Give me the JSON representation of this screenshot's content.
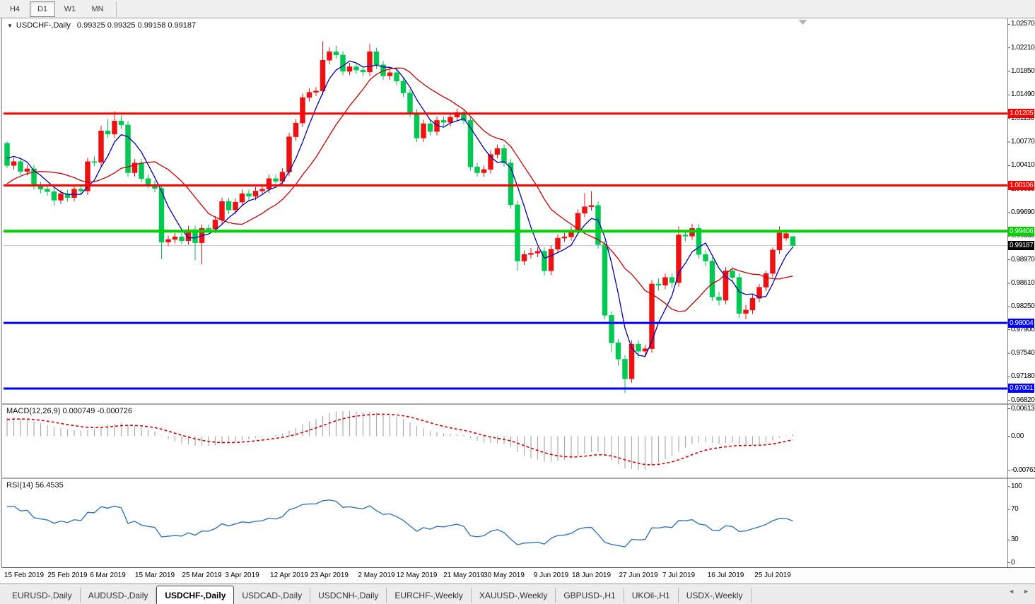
{
  "toolbar": {
    "timeframes": [
      {
        "label": "H4",
        "active": false
      },
      {
        "label": "D1",
        "active": true
      },
      {
        "label": "W1",
        "active": false
      },
      {
        "label": "MN",
        "active": false
      }
    ]
  },
  "chart": {
    "title": {
      "menu_icon": "▼",
      "symbol": "USDCHF-,Daily",
      "ohlc": "0.99325 0.99325 0.99158 0.99187"
    }
  },
  "panels": {
    "macd": {
      "label": "MACD(12,26,9) 0.000749 -0.000726",
      "axis_labels": [
        {
          "text": "0.00613",
          "value": 0.00613
        },
        {
          "text": "0.00",
          "value": 0
        },
        {
          "text": "-0.007612",
          "value": -0.007612
        }
      ],
      "range": {
        "max": 0.007,
        "min": -0.0092
      }
    },
    "rsi": {
      "label": "RSI(14) 56.4535",
      "axis_labels": [
        {
          "text": "100",
          "value": 100
        },
        {
          "text": "70",
          "value": 70
        },
        {
          "text": "30",
          "value": 30
        },
        {
          "text": "0",
          "value": 0
        }
      ],
      "range": {
        "max": 110,
        "min": -5
      }
    }
  },
  "price_axis": {
    "labels": [
      {
        "text": "1.02570",
        "price": 1.0257
      },
      {
        "text": "1.02210",
        "price": 1.0221
      },
      {
        "text": "1.01850",
        "price": 1.0185
      },
      {
        "text": "1.01490",
        "price": 1.0149
      },
      {
        "text": "1.01130",
        "price": 1.0113
      },
      {
        "text": "1.00770",
        "price": 1.0077
      },
      {
        "text": "1.00410",
        "price": 1.0041
      },
      {
        "text": "1.00050",
        "price": 1.0005
      },
      {
        "text": "0.99690",
        "price": 0.9969
      },
      {
        "text": "0.99330",
        "price": 0.9933
      },
      {
        "text": "0.98970",
        "price": 0.9897
      },
      {
        "text": "0.98610",
        "price": 0.9861
      },
      {
        "text": "0.98250",
        "price": 0.9825
      },
      {
        "text": "0.97900",
        "price": 0.979
      },
      {
        "text": "0.97540",
        "price": 0.9754
      },
      {
        "text": "0.97180",
        "price": 0.9718
      },
      {
        "text": "0.96820",
        "price": 0.9682
      }
    ]
  },
  "levels": [
    {
      "text": "1.01205",
      "price": 1.01205,
      "color": "#ff0000",
      "width": 3
    },
    {
      "text": "1.00106",
      "price": 1.00106,
      "color": "#ff0000",
      "width": 3
    },
    {
      "text": "0.99406",
      "price": 0.99406,
      "color": "#00d300",
      "width": 4
    },
    {
      "text": "0.98004",
      "price": 0.98004,
      "color": "#0000ff",
      "width": 3
    },
    {
      "text": "0.97001",
      "price": 0.97001,
      "color": "#0000ff",
      "width": 3
    }
  ],
  "current_price": {
    "text": "0.99187",
    "price": 0.99187,
    "badge_color": "#000000",
    "line_color": "#c6c6c6"
  },
  "icons": {
    "tab_scroll_left": "◄",
    "tab_scroll_right": "►"
  },
  "tabs": {
    "items": [
      {
        "label": "EURUSD-,Daily",
        "active": false
      },
      {
        "label": "AUDUSD-,Daily",
        "active": false
      },
      {
        "label": "USDCHF-,Daily",
        "active": true
      },
      {
        "label": "USDCAD-,Daily",
        "active": false
      },
      {
        "label": "USDCNH-,Daily",
        "active": false
      },
      {
        "label": "EURCHF-,Weekly",
        "active": false
      },
      {
        "label": "XAUUSD-,Weekly",
        "active": false
      },
      {
        "label": "GBPUSD-,H1",
        "active": false
      },
      {
        "label": "UKOil-,H1",
        "active": false
      },
      {
        "label": "USDX-,Weekly",
        "active": false
      }
    ]
  },
  "chart_data": {
    "type": "candlestick",
    "symbol": "USDCHF-",
    "timeframe": "Daily",
    "last_ohlc": {
      "open": 0.99325,
      "high": 0.99325,
      "low": 0.99158,
      "close": 0.99187
    },
    "y_axis": {
      "min": 0.96774,
      "max": 1.0266
    },
    "colors": {
      "bull": "#ee1111",
      "bear": "#00c853",
      "ma_fast": "#0000bb",
      "ma_slow": "#cc0000",
      "macd_hist": "#ababab",
      "macd_signal": "#dd0000",
      "rsi": "#3377c0"
    },
    "indicators": {
      "macd": {
        "fast": 12,
        "slow": 26,
        "signal": 9,
        "value": 0.000749,
        "signal_value": -0.000726
      },
      "rsi": {
        "period": 14,
        "value": 56.4535
      }
    },
    "x_ticks": [
      {
        "label": "15 Feb 2019",
        "index": 2
      },
      {
        "label": "25 Feb 2019",
        "index": 9
      },
      {
        "label": "6 Mar 2019",
        "index": 15
      },
      {
        "label": "15 Mar 2019",
        "index": 22
      },
      {
        "label": "25 Mar 2019",
        "index": 29
      },
      {
        "label": "3 Apr 2019",
        "index": 35
      },
      {
        "label": "12 Apr 2019",
        "index": 42
      },
      {
        "label": "23 Apr 2019",
        "index": 48
      },
      {
        "label": "2 May 2019",
        "index": 55
      },
      {
        "label": "12 May 2019",
        "index": 61
      },
      {
        "label": "21 May 2019",
        "index": 68
      },
      {
        "label": "30 May 2019",
        "index": 74
      },
      {
        "label": "9 Jun 2019",
        "index": 81
      },
      {
        "label": "18 Jun 2019",
        "index": 87
      },
      {
        "label": "27 Jun 2019",
        "index": 94
      },
      {
        "label": "7 Jul 2019",
        "index": 100
      },
      {
        "label": "16 Jul 2019",
        "index": 107
      },
      {
        "label": "25 Jul 2019",
        "index": 114
      }
    ],
    "candles": [
      [
        1.0075,
        1.0078,
        1.0037,
        1.0041
      ],
      [
        1.0041,
        1.0053,
        1.0035,
        1.0047
      ],
      [
        1.0047,
        1.0053,
        1.0026,
        1.0032
      ],
      [
        1.0032,
        1.0042,
        1.0026,
        1.0036
      ],
      [
        1.0036,
        1.0042,
        1.0004,
        1.001
      ],
      [
        1.001,
        1.0016,
        0.9999,
        1.0005
      ],
      [
        1.0005,
        1.0011,
        0.9995,
        1.0001
      ],
      [
        1.0001,
        1.0007,
        0.998,
        0.9988
      ],
      [
        0.9988,
        1.0004,
        0.9982,
        0.9998
      ],
      [
        0.9998,
        1.0004,
        0.9986,
        0.9992
      ],
      [
        0.9992,
        1.0011,
        0.9986,
        1.0005
      ],
      [
        1.0005,
        1.0011,
        0.9996,
        1.0002
      ],
      [
        1.0002,
        1.0053,
        0.9996,
        1.0047
      ],
      [
        1.0047,
        1.0055,
        1.004,
        1.0046
      ],
      [
        1.0046,
        1.0102,
        1.004,
        1.0094
      ],
      [
        1.0094,
        1.0112,
        1.0083,
        1.0089
      ],
      [
        1.0089,
        1.0124,
        1.0083,
        1.0109
      ],
      [
        1.0109,
        1.0118,
        1.0097,
        1.0103
      ],
      [
        1.0103,
        1.0109,
        1.0024,
        1.003
      ],
      [
        1.003,
        1.0051,
        1.0024,
        1.0045
      ],
      [
        1.0045,
        1.0051,
        1.0015,
        1.0021
      ],
      [
        1.0021,
        1.0027,
        1.0006,
        1.0012
      ],
      [
        1.0012,
        1.0018,
        1.0,
        1.0006
      ],
      [
        1.0006,
        1.0012,
        0.9898,
        0.9924
      ],
      [
        0.9924,
        0.9934,
        0.9918,
        0.9928
      ],
      [
        0.9928,
        0.9938,
        0.9922,
        0.9932
      ],
      [
        0.9932,
        0.9938,
        0.992,
        0.9926
      ],
      [
        0.9926,
        0.9949,
        0.992,
        0.9943
      ],
      [
        0.9943,
        0.9949,
        0.9896,
        0.9923
      ],
      [
        0.9923,
        0.9951,
        0.989,
        0.9945
      ],
      [
        0.9945,
        0.9951,
        0.9938,
        0.9944
      ],
      [
        0.9944,
        0.9964,
        0.9938,
        0.9958
      ],
      [
        0.9958,
        0.9992,
        0.9952,
        0.9986
      ],
      [
        0.9986,
        0.9992,
        0.9967,
        0.9973
      ],
      [
        0.9973,
        0.9991,
        0.9967,
        0.9985
      ],
      [
        0.9985,
        1.0004,
        0.9979,
        0.9998
      ],
      [
        0.9998,
        1.0004,
        0.9988,
        0.9994
      ],
      [
        0.9994,
        1.0008,
        0.9988,
        1.0002
      ],
      [
        1.0002,
        1.0011,
        0.9996,
        1.0005
      ],
      [
        1.0005,
        1.0027,
        0.9999,
        1.0021
      ],
      [
        1.0021,
        1.0027,
        1.0011,
        1.0017
      ],
      [
        1.0017,
        1.0037,
        1.0011,
        1.0031
      ],
      [
        1.0031,
        1.0091,
        1.0025,
        1.0085
      ],
      [
        1.0085,
        1.0112,
        1.0079,
        1.0106
      ],
      [
        1.0106,
        1.0151,
        1.01,
        1.0145
      ],
      [
        1.0145,
        1.0159,
        1.0139,
        1.0153
      ],
      [
        1.0153,
        1.0161,
        1.0147,
        1.0155
      ],
      [
        1.0155,
        1.0231,
        1.0149,
        1.0202
      ],
      [
        1.0202,
        1.0222,
        1.0196,
        1.0215
      ],
      [
        1.0215,
        1.0224,
        1.0204,
        1.021
      ],
      [
        1.021,
        1.0216,
        1.0179,
        1.0185
      ],
      [
        1.0185,
        1.0198,
        1.0179,
        1.0192
      ],
      [
        1.0192,
        1.0198,
        1.0181,
        1.0187
      ],
      [
        1.0187,
        1.0193,
        1.0178,
        1.0184
      ],
      [
        1.0184,
        1.0227,
        1.0178,
        1.0215
      ],
      [
        1.0215,
        1.0221,
        1.0189,
        1.0195
      ],
      [
        1.0195,
        1.0201,
        1.0172,
        1.0178
      ],
      [
        1.0178,
        1.019,
        1.0172,
        1.0183
      ],
      [
        1.0183,
        1.0189,
        1.0164,
        1.017
      ],
      [
        1.017,
        1.0176,
        1.0146,
        1.0152
      ],
      [
        1.0152,
        1.0158,
        1.0115,
        1.0121
      ],
      [
        1.0121,
        1.0127,
        1.0077,
        1.0083
      ],
      [
        1.0083,
        1.0111,
        1.0077,
        1.0105
      ],
      [
        1.0105,
        1.0111,
        1.0087,
        1.0093
      ],
      [
        1.0093,
        1.0116,
        1.0087,
        1.011
      ],
      [
        1.011,
        1.0116,
        1.0101,
        1.0107
      ],
      [
        1.0107,
        1.0121,
        1.0101,
        1.0115
      ],
      [
        1.0115,
        1.0128,
        1.0109,
        1.0122
      ],
      [
        1.0122,
        1.0128,
        1.0104,
        1.011
      ],
      [
        1.011,
        1.0116,
        1.0033,
        1.0039
      ],
      [
        1.0039,
        1.0045,
        1.0024,
        1.003
      ],
      [
        1.003,
        1.0041,
        1.0024,
        1.0035
      ],
      [
        1.0035,
        1.0064,
        1.0029,
        1.0058
      ],
      [
        1.0058,
        1.0073,
        1.0052,
        1.0067
      ],
      [
        1.0067,
        1.0073,
        1.0039,
        1.0045
      ],
      [
        1.0045,
        1.0051,
        0.9975,
        0.9981
      ],
      [
        0.9981,
        0.9987,
        0.988,
        0.9895
      ],
      [
        0.9895,
        0.9911,
        0.9889,
        0.9905
      ],
      [
        0.9905,
        0.9915,
        0.9899,
        0.9907
      ],
      [
        0.9907,
        0.9916,
        0.9901,
        0.991
      ],
      [
        0.991,
        0.9916,
        0.9873,
        0.988
      ],
      [
        0.988,
        0.9919,
        0.9874,
        0.9913
      ],
      [
        0.9913,
        0.9936,
        0.9907,
        0.993
      ],
      [
        0.993,
        0.994,
        0.9924,
        0.9932
      ],
      [
        0.9932,
        0.9948,
        0.9926,
        0.9942
      ],
      [
        0.9942,
        0.9974,
        0.9936,
        0.9968
      ],
      [
        0.9968,
        0.9999,
        0.9962,
        0.9978
      ],
      [
        0.9978,
        1.0002,
        0.9972,
        0.998
      ],
      [
        0.998,
        0.9986,
        0.9914,
        0.992
      ],
      [
        0.992,
        0.9926,
        0.9806,
        0.9812
      ],
      [
        0.9812,
        0.9818,
        0.9755,
        0.977
      ],
      [
        0.977,
        0.9776,
        0.9735,
        0.9745
      ],
      [
        0.9745,
        0.9751,
        0.9693,
        0.9715
      ],
      [
        0.9715,
        0.9774,
        0.9709,
        0.9768
      ],
      [
        0.9768,
        0.9774,
        0.9747,
        0.9757
      ],
      [
        0.9757,
        0.9767,
        0.9751,
        0.9761
      ],
      [
        0.9761,
        0.9866,
        0.9755,
        0.986
      ],
      [
        0.986,
        0.9868,
        0.985,
        0.9858
      ],
      [
        0.9858,
        0.9876,
        0.9852,
        0.987
      ],
      [
        0.987,
        0.9876,
        0.9854,
        0.9862
      ],
      [
        0.9862,
        0.9948,
        0.9856,
        0.9935
      ],
      [
        0.9935,
        0.9941,
        0.9925,
        0.9933
      ],
      [
        0.9933,
        0.9952,
        0.9927,
        0.9945
      ],
      [
        0.9945,
        0.9951,
        0.9899,
        0.9905
      ],
      [
        0.9905,
        0.9911,
        0.9887,
        0.9895
      ],
      [
        0.9895,
        0.9901,
        0.9834,
        0.984
      ],
      [
        0.984,
        0.9848,
        0.9827,
        0.9835
      ],
      [
        0.9835,
        0.9886,
        0.9829,
        0.988
      ],
      [
        0.988,
        0.9886,
        0.9862,
        0.987
      ],
      [
        0.987,
        0.9876,
        0.9808,
        0.9815
      ],
      [
        0.9815,
        0.9828,
        0.9806,
        0.982
      ],
      [
        0.982,
        0.9844,
        0.9814,
        0.9838
      ],
      [
        0.9838,
        0.986,
        0.9832,
        0.9855
      ],
      [
        0.9855,
        0.988,
        0.9849,
        0.9876
      ],
      [
        0.9876,
        0.9916,
        0.987,
        0.9912
      ],
      [
        0.9912,
        0.9948,
        0.9906,
        0.9938
      ],
      [
        0.993,
        0.994,
        0.9926,
        0.9937
      ],
      [
        0.99325,
        0.99325,
        0.99158,
        0.99187
      ]
    ]
  }
}
